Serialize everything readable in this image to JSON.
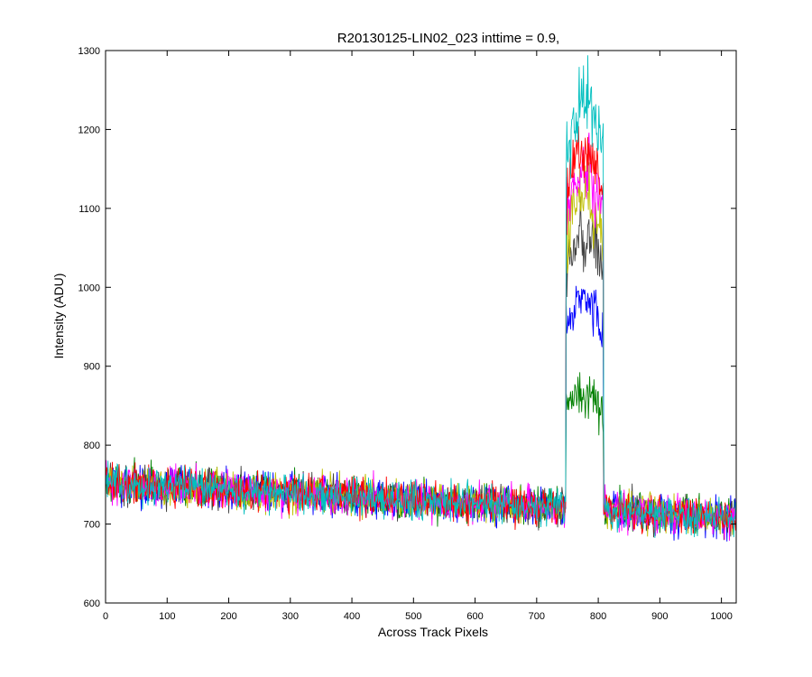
{
  "chart_data": {
    "type": "line",
    "title": "R20130125-LIN02_023 inttime = 0.9,",
    "xlabel": "Across Track Pixels",
    "ylabel": "Intensity (ADU)",
    "xlim": [
      0,
      1024
    ],
    "ylim": [
      600,
      1300
    ],
    "xticks": [
      "0",
      "100",
      "200",
      "300",
      "400",
      "500",
      "600",
      "700",
      "800",
      "900",
      "1000"
    ],
    "yticks": [
      "600",
      "700",
      "800",
      "900",
      "1000",
      "1100",
      "1200",
      "1300"
    ],
    "grid": false,
    "legend": false,
    "noise_amplitude_adu": 12,
    "baseline": {
      "x": [
        0,
        1024
      ],
      "y": [
        752,
        708
      ]
    },
    "peak_region": {
      "x_start": 748,
      "x_end": 808
    },
    "series": [
      {
        "color": "#008000",
        "peak_level": 865
      },
      {
        "color": "#0000ff",
        "peak_level": 985
      },
      {
        "color": "#404040",
        "peak_level": 1070
      },
      {
        "color": "#bfbf00",
        "peak_level": 1110
      },
      {
        "color": "#ff00ff",
        "peak_level": 1150
      },
      {
        "color": "#ff0000",
        "peak_level": 1180
      },
      {
        "color": "#00bfbf",
        "peak_level": 1240
      }
    ]
  }
}
